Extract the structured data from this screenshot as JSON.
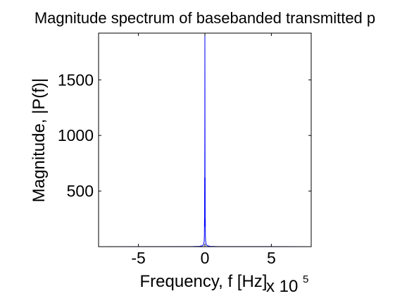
{
  "chart_data": {
    "type": "line",
    "title": "Magnitude spectrum of basebanded transmitted p",
    "xlabel": "Frequency, f [Hz]",
    "ylabel": "Magnitude, |P(f)|",
    "x_multiplier": {
      "base": "x 10",
      "exponent": "5"
    },
    "xlim": [
      -800000,
      800000
    ],
    "ylim": [
      0,
      1920
    ],
    "xticks": [
      -500000,
      0,
      500000
    ],
    "xtick_labels": [
      "-5",
      "0",
      "5"
    ],
    "yticks": [
      500,
      1000,
      1500
    ],
    "ytick_labels": [
      "500",
      "1000",
      "1500"
    ],
    "grid": false,
    "series": [
      {
        "color": "#0000ff",
        "x": [
          -800000,
          -100000,
          -40000,
          -20000,
          -15000,
          -10000,
          -8000,
          -6000,
          -5000,
          -4000,
          -3000,
          -2500,
          -2000,
          -1500,
          -1000,
          -500,
          0,
          500,
          1000,
          1500,
          2000,
          2500,
          3000,
          4000,
          5000,
          6000,
          8000,
          10000,
          15000,
          20000,
          40000,
          100000,
          800000
        ],
        "y": [
          0,
          1,
          3,
          8,
          12,
          20,
          30,
          45,
          60,
          90,
          250,
          180,
          620,
          300,
          720,
          1200,
          1920,
          1200,
          720,
          300,
          620,
          180,
          250,
          90,
          60,
          45,
          30,
          20,
          12,
          8,
          3,
          1,
          0
        ]
      }
    ]
  }
}
